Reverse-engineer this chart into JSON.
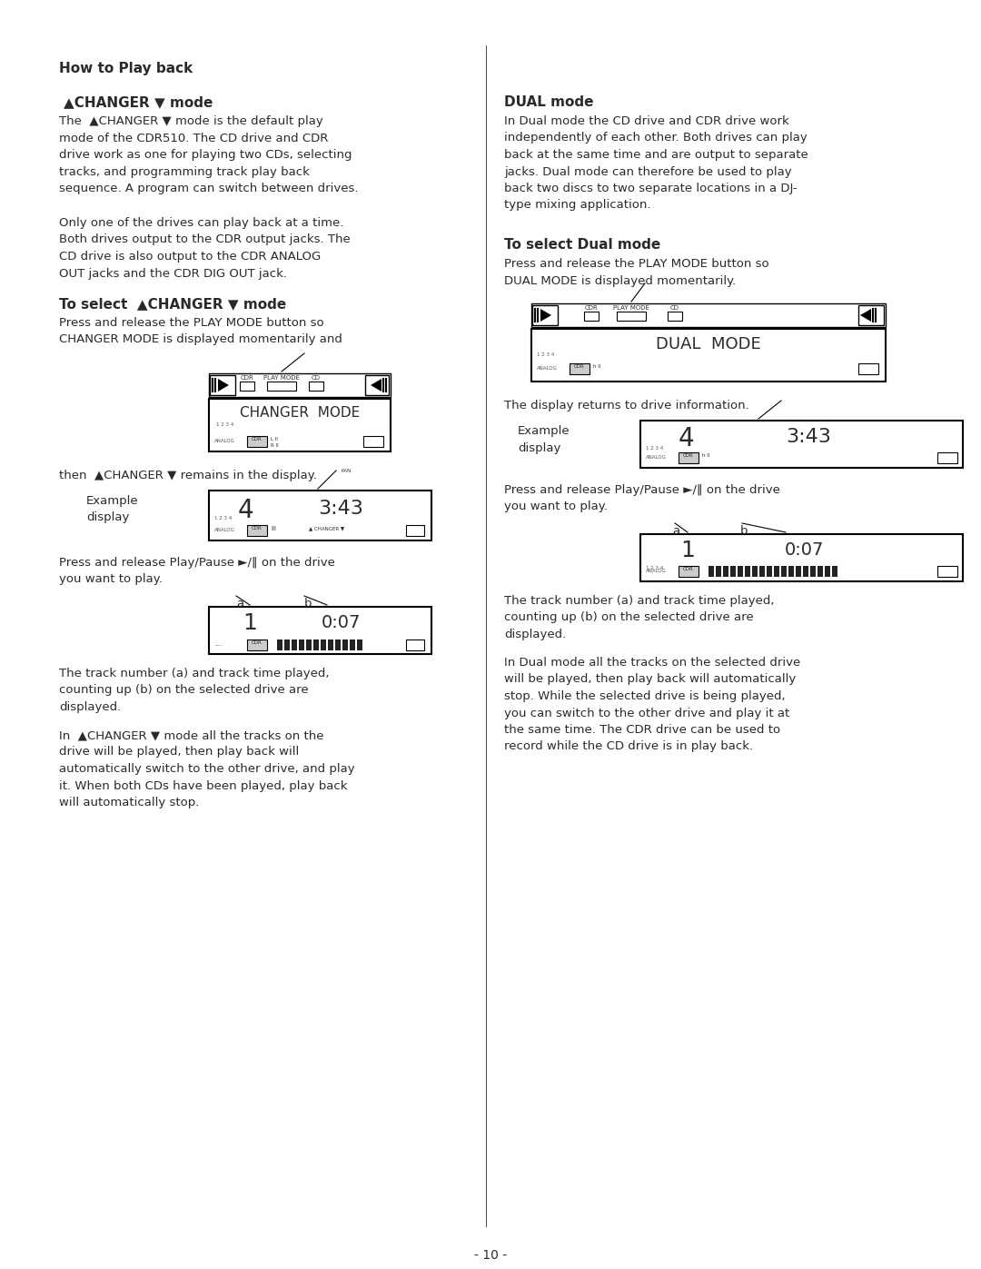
{
  "bg_color": "#ffffff",
  "text_color": "#2a2a2a",
  "page_number": "- 10 -",
  "title": "How to Play back",
  "sections": {
    "changer_heading": "▲CHANGER ▼ mode",
    "changer_para1": "The  ▲CHANGER ▼ mode is the default play\nmode of the CDR510. The CD drive and CDR\ndrive work as one for playing two CDs, selecting\ntracks, and programming track play back\nsequence. A program can switch between drives.",
    "changer_para2": "Only one of the drives can play back at a time.\nBoth drives output to the CDR output jacks. The\nCD drive is also output to the CDR ANALOG\nOUT jacks and the CDR DIG OUT jack.",
    "select_changer_heading": "To select  ▲CHANGER ▼ mode",
    "select_changer_para": "Press and release the PLAY MODE button so\nCHANGER MODE is displayed momentarily and",
    "then_changer": "then  ▲CHANGER ▼ remains in the display.",
    "press_play_pause_left": "Press and release Play/Pause ►/‖ on the drive\nyou want to play.",
    "track_info_left": "The track number (a) and track time played,\ncounting up (b) on the selected drive are\ndisplayed.",
    "changer_mode_para": "In  ▲CHANGER ▼ mode all the tracks on the\ndrive will be played, then play back will\nautomatically switch to the other drive, and play\nit. When both CDs have been played, play back\nwill automatically stop.",
    "dual_heading": "DUAL mode",
    "dual_para": "In Dual mode the CD drive and CDR drive work\nindependently of each other. Both drives can play\nback at the same time and are output to separate\njacks. Dual mode can therefore be used to play\nback two discs to two separate locations in a DJ-\ntype mixing application.",
    "select_dual_heading": "To select Dual mode",
    "select_dual_para": "Press and release the PLAY MODE button so\nDUAL MODE is displayed momentarily.",
    "display_returns": "The display returns to drive information.",
    "press_play_pause_right": "Press and release Play/Pause ►/‖ on the drive\nyou want to play.",
    "track_info_right": "The track number (a) and track time played,\ncounting up (b) on the selected drive are\ndisplayed.",
    "dual_mode_para": "In Dual mode all the tracks on the selected drive\nwill be played, then play back will automatically\nstop. While the selected drive is being played,\nyou can switch to the other drive and play it at\nthe same time. The CDR drive can be used to\nrecord while the CD drive is in play back."
  }
}
